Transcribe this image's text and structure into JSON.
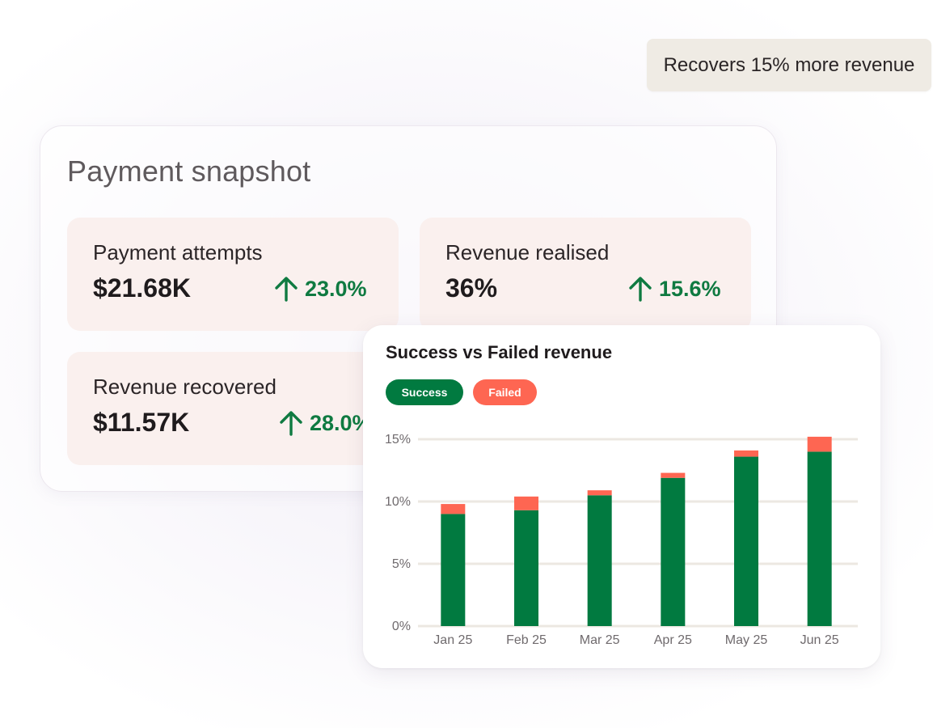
{
  "badge": {
    "text": "Recovers 15% more revenue"
  },
  "snapshot": {
    "title": "Payment snapshot",
    "cards": [
      {
        "label": "Payment attempts",
        "value": "$21.68K",
        "delta": "23.0%",
        "trend": "up"
      },
      {
        "label": "Revenue realised",
        "value": "36%",
        "delta": "15.6%",
        "trend": "up"
      },
      {
        "label": "Revenue recovered",
        "value": "$11.57K",
        "delta": "28.0%",
        "trend": "up"
      }
    ]
  },
  "chart": {
    "title": "Success vs Failed revenue",
    "legend": [
      {
        "label": "Success",
        "color": "#017a40"
      },
      {
        "label": "Failed",
        "color": "#fe6652"
      }
    ]
  },
  "chart_data": {
    "type": "bar",
    "stacked": true,
    "title": "Success vs Failed revenue",
    "categories": [
      "Jan 25",
      "Feb 25",
      "Mar 25",
      "Apr 25",
      "May 25",
      "Jun 25"
    ],
    "series": [
      {
        "name": "Success",
        "color": "#017a40",
        "values": [
          9.0,
          9.3,
          10.5,
          11.9,
          13.6,
          14.0
        ]
      },
      {
        "name": "Failed",
        "color": "#fe6652",
        "values": [
          0.8,
          1.1,
          0.4,
          0.4,
          0.5,
          1.2
        ]
      }
    ],
    "yticks": [
      "0%",
      "5%",
      "10%",
      "15%"
    ],
    "ylim": [
      0,
      15
    ],
    "grid": true,
    "legend_position": "top-left"
  },
  "colors": {
    "accent_green": "#0f7a41",
    "card_bg": "#faf0ee",
    "badge_bg": "#efebe4"
  }
}
